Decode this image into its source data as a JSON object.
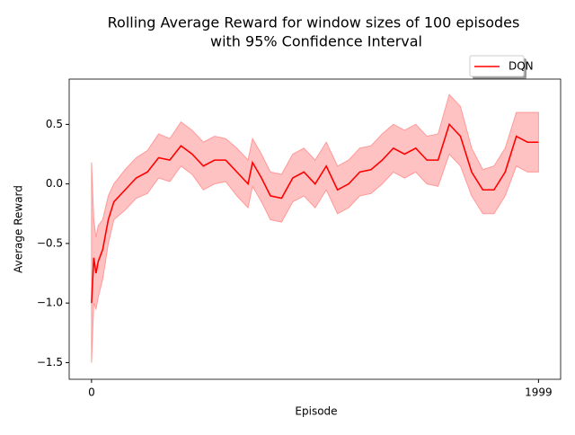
{
  "chart_data": {
    "type": "line",
    "title": [
      "Rolling Average Reward for window sizes of 100 episodes",
      "with 95% Confidence Interval"
    ],
    "x_label": "Episode",
    "y_label": "Average Reward",
    "x": [
      0,
      10,
      20,
      30,
      50,
      75,
      100,
      150,
      200,
      250,
      300,
      350,
      400,
      450,
      500,
      550,
      600,
      650,
      700,
      720,
      760,
      800,
      850,
      900,
      950,
      1000,
      1050,
      1100,
      1150,
      1200,
      1250,
      1300,
      1350,
      1400,
      1450,
      1500,
      1550,
      1600,
      1650,
      1700,
      1750,
      1800,
      1850,
      1900,
      1950,
      1999
    ],
    "series": [
      {
        "name": "DQN",
        "color": "#ff0000",
        "values": [
          -1.0,
          -0.62,
          -0.75,
          -0.65,
          -0.55,
          -0.3,
          -0.15,
          -0.05,
          0.05,
          0.1,
          0.22,
          0.2,
          0.32,
          0.25,
          0.15,
          0.2,
          0.2,
          0.1,
          0.0,
          0.18,
          0.05,
          -0.1,
          -0.12,
          0.05,
          0.1,
          0.0,
          0.15,
          -0.05,
          0.0,
          0.1,
          0.12,
          0.2,
          0.3,
          0.25,
          0.3,
          0.2,
          0.2,
          0.5,
          0.4,
          0.1,
          -0.05,
          -0.05,
          0.1,
          0.4,
          0.35,
          0.35
        ],
        "lower": [
          -1.5,
          -1.0,
          -1.05,
          -0.95,
          -0.8,
          -0.5,
          -0.3,
          -0.22,
          -0.12,
          -0.08,
          0.05,
          0.02,
          0.15,
          0.08,
          -0.05,
          0.0,
          0.02,
          -0.1,
          -0.2,
          -0.02,
          -0.15,
          -0.3,
          -0.32,
          -0.15,
          -0.1,
          -0.2,
          -0.05,
          -0.25,
          -0.2,
          -0.1,
          -0.08,
          0.0,
          0.1,
          0.05,
          0.1,
          0.0,
          -0.02,
          0.25,
          0.15,
          -0.1,
          -0.25,
          -0.25,
          -0.1,
          0.15,
          0.1,
          0.1
        ],
        "upper": [
          0.18,
          -0.3,
          -0.45,
          -0.35,
          -0.3,
          -0.1,
          0.0,
          0.12,
          0.22,
          0.28,
          0.42,
          0.38,
          0.52,
          0.45,
          0.35,
          0.4,
          0.38,
          0.3,
          0.2,
          0.38,
          0.25,
          0.1,
          0.08,
          0.25,
          0.3,
          0.2,
          0.35,
          0.15,
          0.2,
          0.3,
          0.32,
          0.42,
          0.5,
          0.45,
          0.5,
          0.4,
          0.42,
          0.75,
          0.65,
          0.3,
          0.12,
          0.15,
          0.3,
          0.6,
          0.6,
          0.6
        ],
        "band_color": "#ff9999"
      }
    ],
    "xlim": [
      -100,
      2098
    ],
    "xticks": [
      0,
      1999
    ],
    "ylim": [
      -1.64,
      0.88
    ],
    "yticks": [
      {
        "value": -1.5,
        "label": "−1.5"
      },
      {
        "value": -1,
        "label": "−1.0"
      },
      {
        "value": -0.5,
        "label": "−0.5"
      },
      {
        "value": 0,
        "label": "0.0"
      },
      0.5
    ],
    "legend": "upper right, above plot"
  }
}
